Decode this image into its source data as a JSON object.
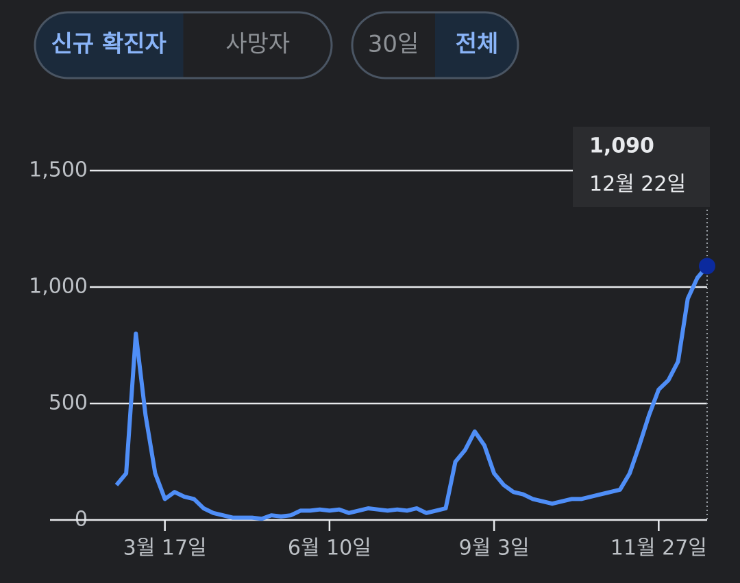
{
  "controls": [
    {
      "options": [
        "신규 확진자",
        "사망자"
      ],
      "selected": 0
    },
    {
      "options": [
        "30일",
        "전체"
      ],
      "selected": 1
    }
  ],
  "chart_data": {
    "type": "line",
    "categories": [
      null,
      null,
      null,
      null,
      null,
      "3월 17일",
      null,
      null,
      null,
      null,
      null,
      null,
      null,
      null,
      null,
      null,
      null,
      null,
      null,
      null,
      null,
      null,
      "6월 10일",
      null,
      null,
      null,
      null,
      null,
      null,
      null,
      null,
      null,
      null,
      null,
      null,
      null,
      null,
      null,
      null,
      "9월 3일",
      null,
      null,
      null,
      null,
      null,
      null,
      null,
      null,
      null,
      null,
      null,
      null,
      null,
      null,
      null,
      null,
      "11월 27일",
      null,
      null,
      null,
      null,
      null
    ],
    "series": [
      {
        "color": "#4f8ef7",
        "values": [
          150,
          200,
          800,
          450,
          200,
          90,
          120,
          100,
          90,
          50,
          30,
          20,
          10,
          10,
          10,
          5,
          20,
          15,
          20,
          40,
          40,
          45,
          40,
          45,
          30,
          40,
          50,
          45,
          40,
          45,
          40,
          50,
          30,
          40,
          50,
          250,
          300,
          380,
          320,
          200,
          150,
          120,
          110,
          90,
          80,
          70,
          80,
          90,
          90,
          100,
          110,
          120,
          130,
          200,
          320,
          450,
          560,
          600,
          680,
          950,
          1040,
          1090
        ]
      }
    ],
    "ylim": [
      0,
      1500
    ],
    "yticks": [
      0,
      {
        "value": 500,
        "label": "500"
      },
      {
        "value": 1000,
        "label": "1,000"
      },
      {
        "value": 1500,
        "label": "1,500"
      }
    ],
    "grid": true,
    "tooltip": {
      "value_label": "1,090",
      "date": "12월 22일"
    }
  }
}
